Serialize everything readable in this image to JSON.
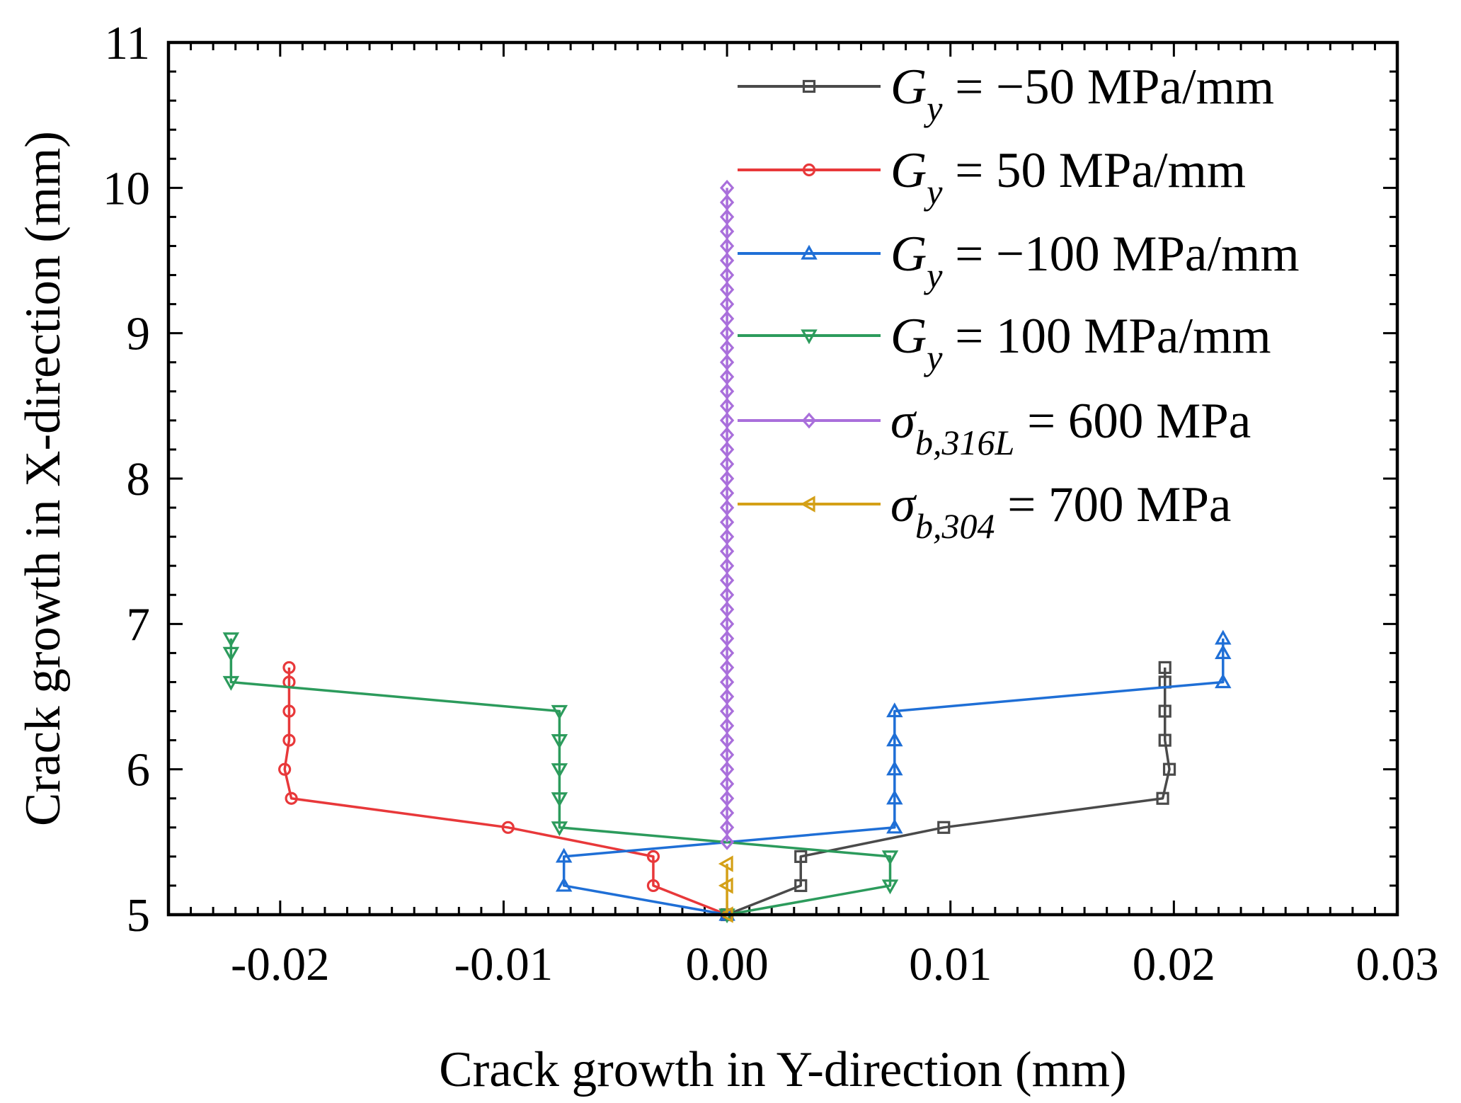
{
  "chart_data": {
    "type": "line",
    "xlabel": "Crack growth in Y-direction (mm)",
    "ylabel": "Crack growth in X-direction (mm)",
    "xlim": [
      -0.025,
      0.03
    ],
    "ylim": [
      5,
      11
    ],
    "xticks": [
      -0.02,
      -0.01,
      0.0,
      0.01,
      0.02,
      0.03
    ],
    "xtick_labels": [
      "-0.02",
      "-0.01",
      "0.00",
      "0.01",
      "0.02",
      "0.03"
    ],
    "yticks": [
      5,
      6,
      7,
      8,
      9,
      10,
      11
    ],
    "ytick_labels": [
      "5",
      "6",
      "7",
      "8",
      "9",
      "10",
      "11"
    ],
    "grid": false,
    "legend_position": "top-right",
    "series": [
      {
        "name": "G_y = −50 MPa/mm",
        "legend": {
          "symbol": "G",
          "sub": "y",
          "rest": " = −50 MPa/mm"
        },
        "color": "#4a4a4a",
        "marker": "square",
        "x": [
          0.0,
          0.0033,
          0.0033,
          0.0097,
          0.0195,
          0.0198,
          0.0196,
          0.0196,
          0.0196,
          0.0196
        ],
        "y": [
          5.0,
          5.2,
          5.4,
          5.6,
          5.8,
          6.0,
          6.2,
          6.4,
          6.6,
          6.7
        ]
      },
      {
        "name": "G_y = 50 MPa/mm",
        "legend": {
          "symbol": "G",
          "sub": "y",
          "rest": " = 50 MPa/mm"
        },
        "color": "#e8383a",
        "marker": "circle",
        "x": [
          0.0,
          -0.0033,
          -0.0033,
          -0.0098,
          -0.0195,
          -0.0198,
          -0.0196,
          -0.0196,
          -0.0196,
          -0.0196
        ],
        "y": [
          5.0,
          5.2,
          5.4,
          5.6,
          5.8,
          6.0,
          6.2,
          6.4,
          6.6,
          6.7
        ]
      },
      {
        "name": "G_y = −100 MPa/mm",
        "legend": {
          "symbol": "G",
          "sub": "y",
          "rest": " = −100 MPa/mm"
        },
        "color": "#1f6fd6",
        "marker": "triangle-up",
        "x": [
          0.0,
          -0.0073,
          -0.0073,
          0.0075,
          0.0075,
          0.0075,
          0.0075,
          0.0075,
          0.0222,
          0.0222,
          0.0222
        ],
        "y": [
          5.0,
          5.2,
          5.4,
          5.6,
          5.8,
          6.0,
          6.2,
          6.4,
          6.6,
          6.8,
          6.9
        ]
      },
      {
        "name": "G_y = 100 MPa/mm",
        "legend": {
          "symbol": "G",
          "sub": "y",
          "rest": " = 100 MPa/mm"
        },
        "color": "#2c9b5c",
        "marker": "triangle-down",
        "x": [
          0.0,
          0.0073,
          0.0073,
          -0.0075,
          -0.0075,
          -0.0075,
          -0.0075,
          -0.0075,
          -0.0222,
          -0.0222,
          -0.0222
        ],
        "y": [
          5.0,
          5.2,
          5.4,
          5.6,
          5.8,
          6.0,
          6.2,
          6.4,
          6.6,
          6.8,
          6.9
        ]
      },
      {
        "name": "σ_b,316L = 600 MPa",
        "legend": {
          "symbol": "σ",
          "sub": "b,316L",
          "rest": " = 600 MPa"
        },
        "color": "#a96fdb",
        "marker": "diamond",
        "x": [
          0.0,
          0.0,
          0.0,
          0.0,
          0.0,
          0.0,
          0.0,
          0.0,
          0.0,
          0.0,
          0.0,
          0.0,
          0.0,
          0.0,
          0.0,
          0.0,
          0.0,
          0.0,
          0.0,
          0.0,
          0.0,
          0.0,
          0.0,
          0.0,
          0.0,
          0.0,
          0.0,
          0.0,
          0.0,
          0.0,
          0.0,
          0.0,
          0.0,
          0.0,
          0.0,
          0.0,
          0.0,
          0.0,
          0.0,
          0.0,
          0.0,
          0.0,
          0.0,
          0.0,
          0.0,
          0.0
        ],
        "y": [
          5.5,
          5.6,
          5.7,
          5.8,
          5.9,
          6.0,
          6.1,
          6.2,
          6.3,
          6.4,
          6.5,
          6.6,
          6.7,
          6.8,
          6.9,
          7.0,
          7.1,
          7.2,
          7.3,
          7.4,
          7.5,
          7.6,
          7.7,
          7.8,
          7.9,
          8.0,
          8.1,
          8.2,
          8.3,
          8.4,
          8.5,
          8.6,
          8.7,
          8.8,
          8.9,
          9.0,
          9.1,
          9.2,
          9.3,
          9.4,
          9.5,
          9.6,
          9.7,
          9.8,
          9.9,
          10.0
        ]
      },
      {
        "name": "σ_b,304 = 700 MPa",
        "legend": {
          "symbol": "σ",
          "sub": "b,304",
          "rest": " = 700 MPa"
        },
        "color": "#d4a017",
        "marker": "triangle-left",
        "x": [
          0.0,
          0.0,
          0.0
        ],
        "y": [
          5.0,
          5.2,
          5.35
        ]
      }
    ]
  }
}
